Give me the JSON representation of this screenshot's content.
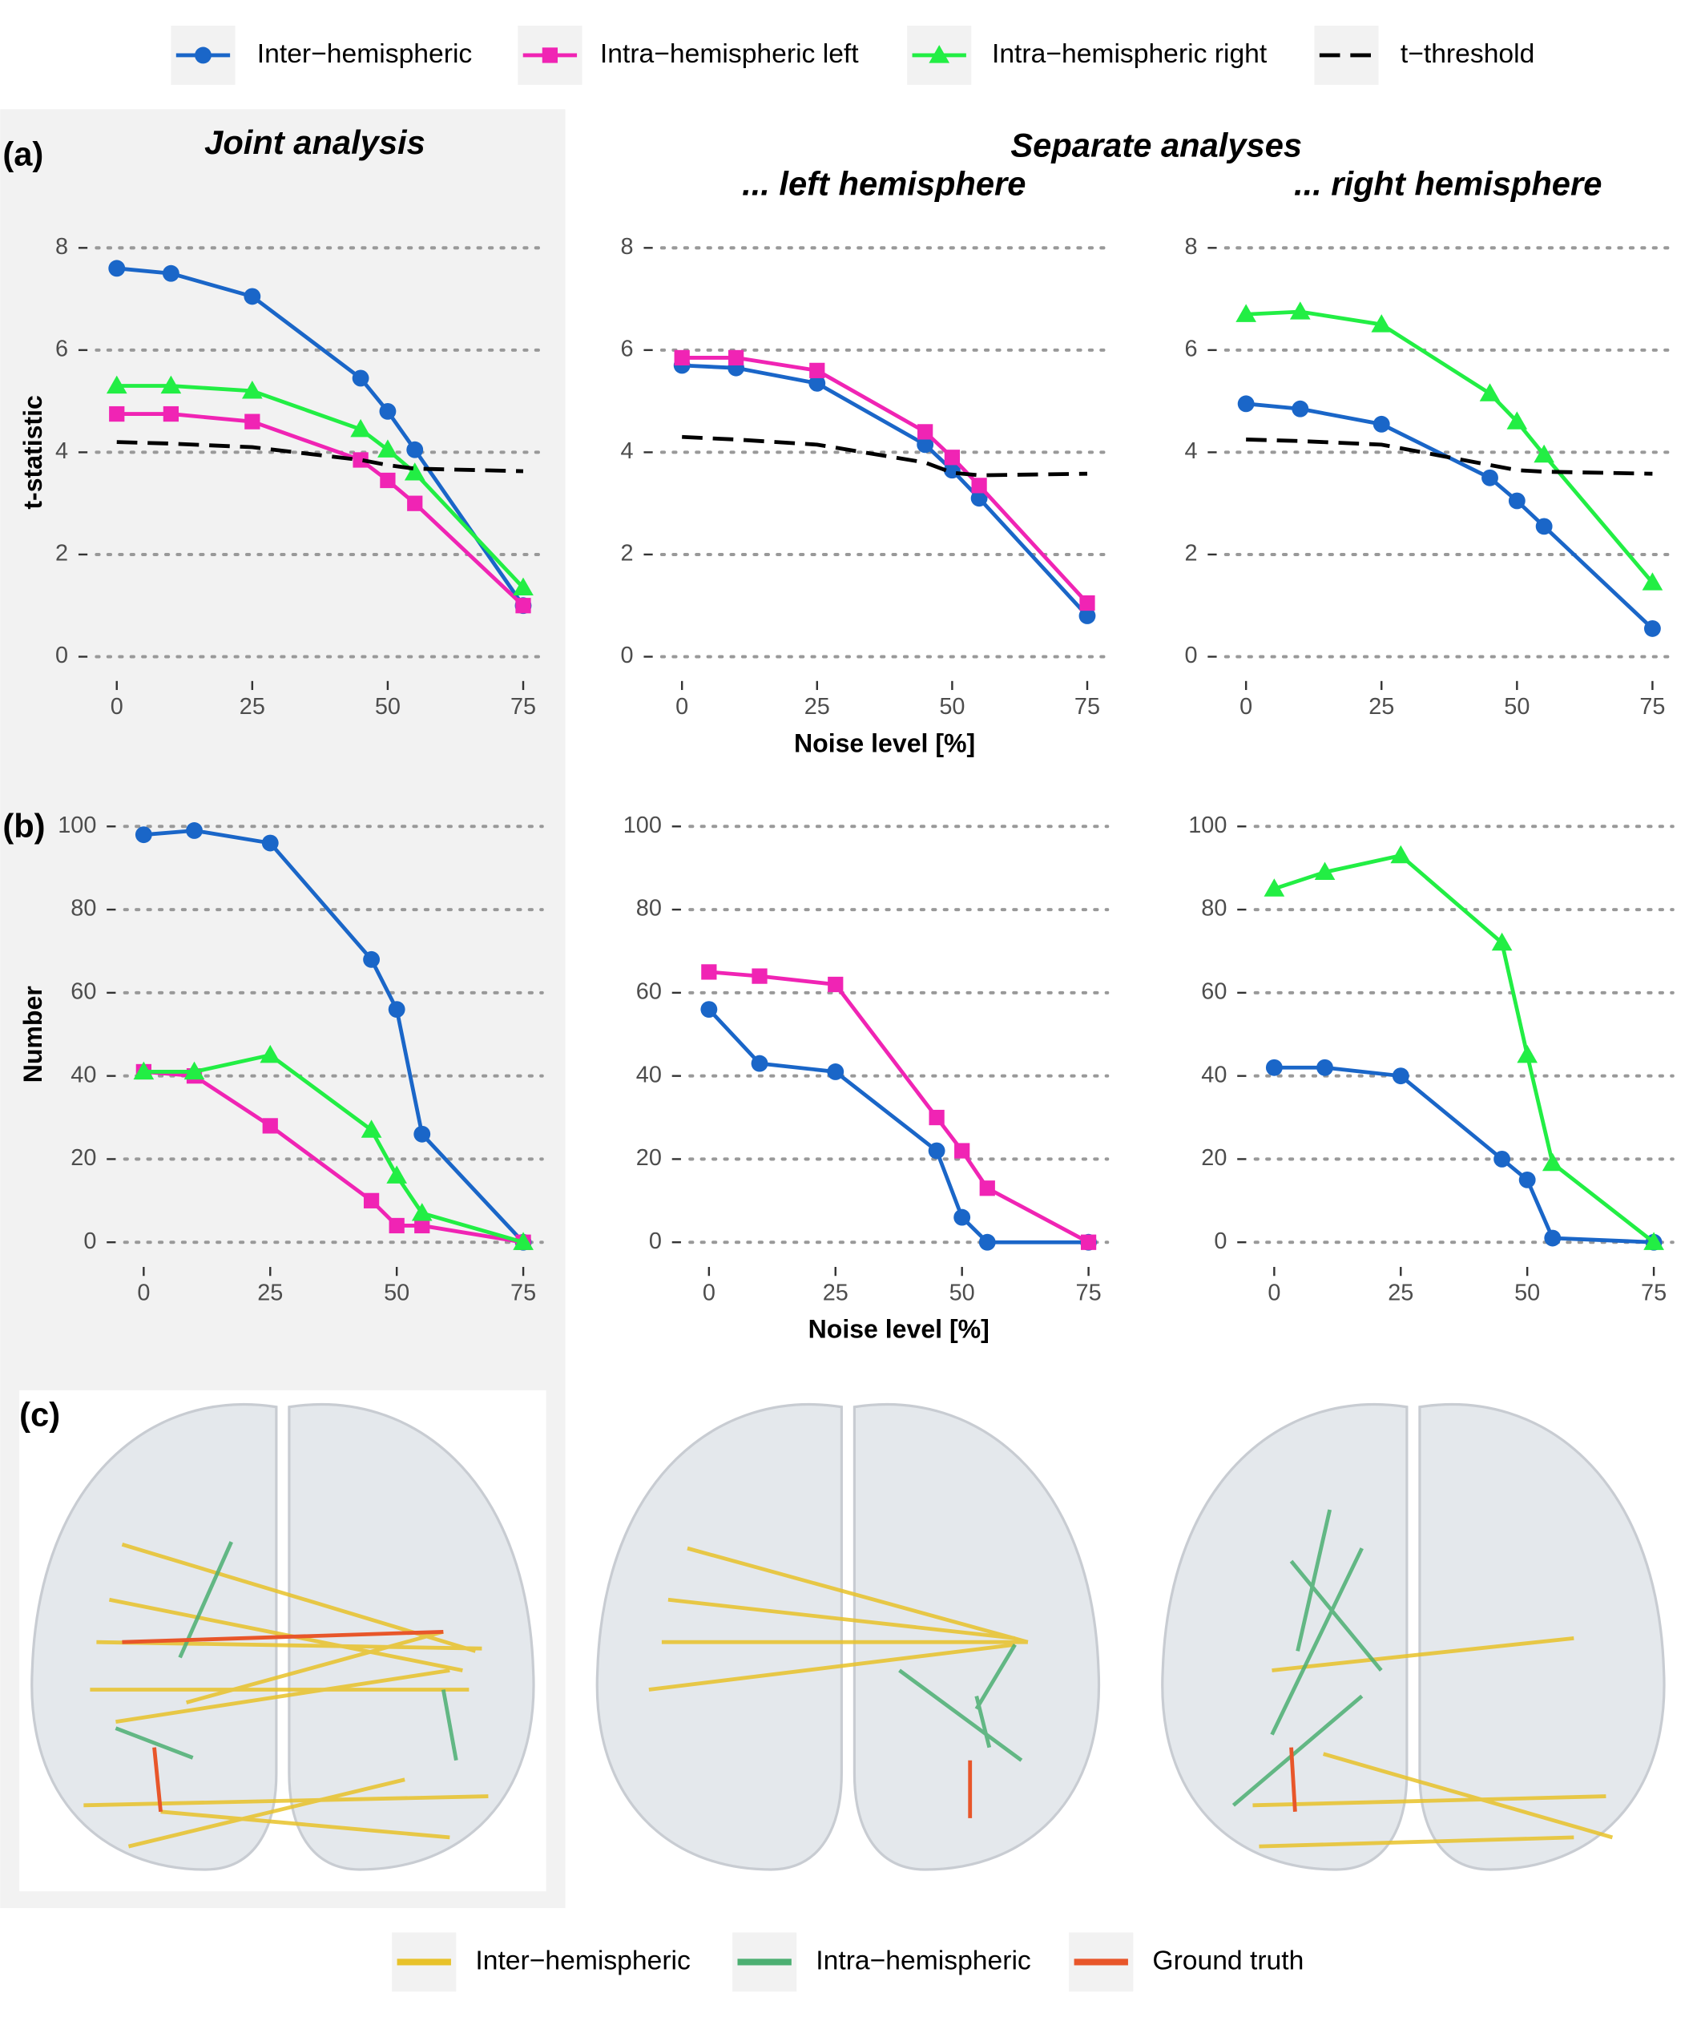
{
  "headers": {
    "joint": "Joint analysis",
    "separate": "Separate analyses",
    "left": "... left hemisphere",
    "right": "... right hemisphere"
  },
  "panel_labels": [
    "(a)",
    "(b)",
    "(c)"
  ],
  "brain_legend": [
    {
      "name": "Inter−hemispheric",
      "color": "#e8c22a"
    },
    {
      "name": "Intra−hemispheric",
      "color": "#4caf72"
    },
    {
      "name": "Ground truth",
      "color": "#e8562a"
    }
  ],
  "chart_data": [
    {
      "type": "line",
      "ylabel": "t-statistic",
      "x": [
        0,
        10,
        25,
        45,
        50,
        55,
        75
      ],
      "xlim": [
        -3.75,
        78.75
      ],
      "xticks": [
        0,
        25,
        50,
        75
      ],
      "ylim": [
        -0.4,
        8.4
      ],
      "yticks": [
        0,
        2,
        4,
        6,
        8
      ],
      "grid": true,
      "series": [
        {
          "name": "Inter−hemispheric",
          "color": "#1a66c8",
          "marker": "circle",
          "values": [
            7.6,
            7.5,
            7.05,
            5.45,
            4.8,
            4.05,
            1.0
          ]
        },
        {
          "name": "Intra−hemispheric left",
          "color": "#f024b4",
          "marker": "square",
          "values": [
            4.75,
            4.75,
            4.6,
            3.85,
            3.45,
            3.0,
            1.0
          ]
        },
        {
          "name": "Intra−hemispheric right",
          "color": "#22ee44",
          "marker": "triangle",
          "values": [
            5.3,
            5.3,
            5.2,
            4.45,
            4.05,
            3.6,
            1.35
          ]
        },
        {
          "name": "t−threshold",
          "color": "#000000",
          "dash": true,
          "values": [
            4.2,
            4.17,
            4.1,
            3.85,
            3.75,
            3.68,
            3.63
          ]
        }
      ]
    },
    {
      "type": "line",
      "xlabel": "Noise level [%]",
      "x": [
        0,
        10,
        25,
        45,
        50,
        55,
        75
      ],
      "xlim": [
        -3.75,
        78.75
      ],
      "xticks": [
        0,
        25,
        50,
        75
      ],
      "ylim": [
        -0.4,
        8.4
      ],
      "yticks": [
        0,
        2,
        4,
        6,
        8
      ],
      "grid": true,
      "series": [
        {
          "color": "#1a66c8",
          "marker": "circle",
          "values": [
            5.7,
            5.65,
            5.35,
            4.15,
            3.65,
            3.1,
            0.8
          ]
        },
        {
          "color": "#f024b4",
          "marker": "square",
          "values": [
            5.85,
            5.85,
            5.6,
            4.4,
            3.9,
            3.35,
            1.05
          ]
        },
        {
          "color": "#000000",
          "dash": true,
          "values": [
            4.3,
            4.25,
            4.15,
            3.8,
            3.6,
            3.55,
            3.58
          ]
        }
      ]
    },
    {
      "type": "line",
      "x": [
        0,
        10,
        25,
        45,
        50,
        55,
        75
      ],
      "xlim": [
        -3.75,
        78.75
      ],
      "xticks": [
        0,
        25,
        50,
        75
      ],
      "ylim": [
        -0.4,
        8.4
      ],
      "yticks": [
        0,
        2,
        4,
        6,
        8
      ],
      "grid": true,
      "series": [
        {
          "color": "#1a66c8",
          "marker": "circle",
          "values": [
            4.95,
            4.85,
            4.55,
            3.5,
            3.05,
            2.55,
            0.55
          ]
        },
        {
          "color": "#22ee44",
          "marker": "triangle",
          "values": [
            6.7,
            6.75,
            6.5,
            5.15,
            4.6,
            3.95,
            1.45
          ]
        },
        {
          "color": "#000000",
          "dash": true,
          "values": [
            4.25,
            4.22,
            4.15,
            3.75,
            3.65,
            3.62,
            3.58
          ]
        }
      ]
    },
    {
      "type": "line",
      "ylabel": "Number",
      "x": [
        0,
        10,
        25,
        45,
        50,
        55,
        75
      ],
      "xlim": [
        -3.75,
        78.75
      ],
      "xticks": [
        0,
        25,
        50,
        75
      ],
      "ylim": [
        -5,
        105
      ],
      "yticks": [
        0,
        20,
        40,
        60,
        80,
        100
      ],
      "grid": true,
      "series": [
        {
          "color": "#1a66c8",
          "marker": "circle",
          "values": [
            98,
            99,
            96,
            68,
            56,
            26,
            0
          ]
        },
        {
          "color": "#f024b4",
          "marker": "square",
          "values": [
            41,
            40,
            28,
            10,
            4,
            4,
            0
          ]
        },
        {
          "color": "#22ee44",
          "marker": "triangle",
          "values": [
            41,
            41,
            45,
            27,
            16,
            7,
            0
          ]
        }
      ]
    },
    {
      "type": "line",
      "xlabel": "Noise level [%]",
      "x": [
        0,
        10,
        25,
        45,
        50,
        55,
        75
      ],
      "xlim": [
        -3.75,
        78.75
      ],
      "xticks": [
        0,
        25,
        50,
        75
      ],
      "ylim": [
        -5,
        105
      ],
      "yticks": [
        0,
        20,
        40,
        60,
        80,
        100
      ],
      "grid": true,
      "series": [
        {
          "color": "#1a66c8",
          "marker": "circle",
          "values": [
            56,
            43,
            41,
            22,
            6,
            0,
            0
          ]
        },
        {
          "color": "#f024b4",
          "marker": "square",
          "values": [
            65,
            64,
            62,
            30,
            22,
            13,
            0
          ]
        }
      ]
    },
    {
      "type": "line",
      "x": [
        0,
        10,
        25,
        45,
        50,
        55,
        75
      ],
      "xlim": [
        -3.75,
        78.75
      ],
      "xticks": [
        0,
        25,
        50,
        75
      ],
      "ylim": [
        -5,
        105
      ],
      "yticks": [
        0,
        20,
        40,
        60,
        80,
        100
      ],
      "grid": true,
      "series": [
        {
          "color": "#1a66c8",
          "marker": "circle",
          "values": [
            42,
            42,
            40,
            20,
            15,
            1,
            0
          ]
        },
        {
          "color": "#22ee44",
          "marker": "triangle",
          "values": [
            85,
            89,
            93,
            72,
            45,
            19,
            0
          ]
        }
      ]
    }
  ]
}
